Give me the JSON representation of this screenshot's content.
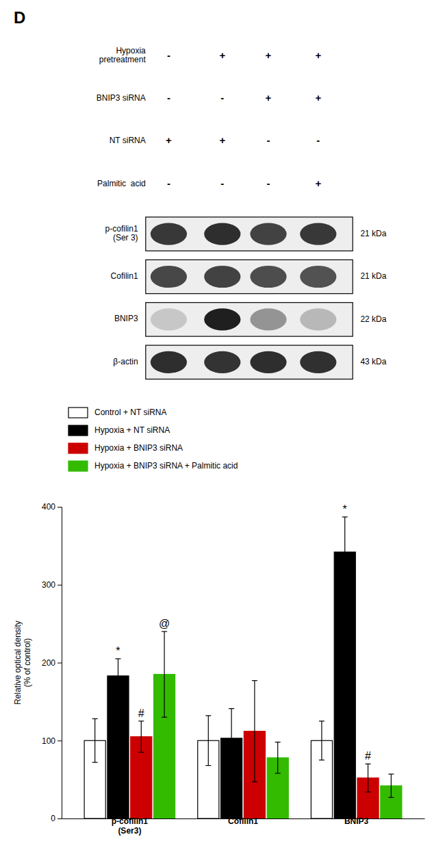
{
  "chart_data": [
    {
      "type": "blot",
      "title": "D",
      "conditions": [
        "Hypoxia\npretreatment",
        "BNIP3 siRNA",
        "NT siRNA",
        "Palmitic  acid"
      ],
      "signs": [
        [
          "-",
          "+",
          "+",
          "+"
        ],
        [
          "-",
          "-",
          "+",
          "+"
        ],
        [
          "+",
          "+",
          "-",
          "-"
        ],
        [
          "-",
          "-",
          "-",
          "+"
        ]
      ],
      "proteins": [
        "p-cofilin1\n(Ser 3)",
        "Cofilin1",
        "BNIP3",
        "β-actin"
      ],
      "kda_labels": [
        "21 kDa",
        "21 kDa",
        "22 kDa",
        "43 kDa"
      ],
      "intensities": [
        [
          0.78,
          0.82,
          0.74,
          0.78
        ],
        [
          0.72,
          0.74,
          0.7,
          0.68
        ],
        [
          0.22,
          0.88,
          0.42,
          0.28
        ],
        [
          0.82,
          0.8,
          0.82,
          0.81
        ]
      ]
    },
    {
      "type": "bar",
      "categories": [
        "p-cofilin1\n(Ser3)",
        "Cofilin1",
        "BNIP3"
      ],
      "series": [
        {
          "name": "Control + NT siRNA",
          "color": "white",
          "values": [
            100,
            100,
            100
          ],
          "errors": [
            28,
            32,
            25
          ]
        },
        {
          "name": "Hypoxia + NT siRNA",
          "color": "black",
          "values": [
            183,
            103,
            342
          ],
          "errors": [
            22,
            38,
            45
          ]
        },
        {
          "name": "Hypoxia + BNIP3 siRNA",
          "color": "#cc0000",
          "values": [
            105,
            112,
            52
          ],
          "errors": [
            20,
            65,
            18
          ]
        },
        {
          "name": "Hypoxia + BNIP3 siRNA + Palmitic acid",
          "color": "#33bb00",
          "values": [
            185,
            78,
            42
          ],
          "errors": [
            55,
            20,
            15
          ]
        }
      ],
      "annotations": [
        {
          "text": "*",
          "series": "Hypoxia + NT siRNA",
          "category": "p-cofilin1\n(Ser3)"
        },
        {
          "text": "#",
          "series": "Hypoxia + BNIP3 siRNA",
          "category": "p-cofilin1\n(Ser3)"
        },
        {
          "text": "@",
          "series": "Hypoxia + BNIP3 siRNA + Palmitic acid",
          "category": "p-cofilin1\n(Ser3)"
        },
        {
          "text": "*",
          "series": "Hypoxia + NT siRNA",
          "category": "BNIP3"
        },
        {
          "text": "#",
          "series": "Hypoxia + BNIP3 siRNA",
          "category": "BNIP3"
        }
      ],
      "ylabel": "Relative optical density\n(% of control)",
      "ylim": [
        0,
        400
      ],
      "yticks": [
        0,
        100,
        200,
        300,
        400
      ],
      "grid": false,
      "legend": "top"
    }
  ]
}
